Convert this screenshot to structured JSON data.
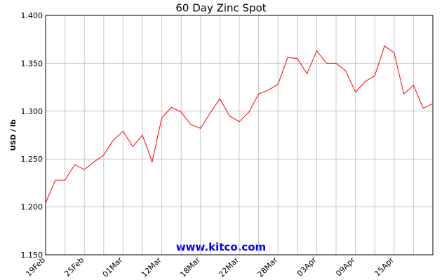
{
  "chart_data": {
    "type": "line",
    "title": "60 Day Zinc Spot",
    "y_label": "USD / lb",
    "annotation": "www.kitco.com",
    "categories": [
      "19Feb",
      null,
      null,
      null,
      "25Feb",
      null,
      null,
      null,
      "01Mar",
      null,
      null,
      null,
      "12Mar",
      null,
      null,
      null,
      "18Mar",
      null,
      null,
      null,
      "22Mar",
      null,
      null,
      null,
      "28Mar",
      null,
      null,
      null,
      "03Apr",
      null,
      null,
      null,
      "09Apr",
      null,
      null,
      null,
      "15Apr",
      null,
      null,
      null,
      null
    ],
    "values": [
      1.204,
      1.228,
      1.228,
      1.244,
      1.239,
      1.247,
      1.254,
      1.27,
      1.279,
      1.263,
      1.275,
      1.247,
      1.293,
      1.304,
      1.299,
      1.286,
      1.282,
      1.298,
      1.313,
      1.295,
      1.289,
      1.299,
      1.318,
      1.322,
      1.328,
      1.356,
      1.355,
      1.339,
      1.363,
      1.35,
      1.35,
      1.342,
      1.32,
      1.331,
      1.337,
      1.368,
      1.361,
      1.318,
      1.327,
      1.303,
      1.308
    ],
    "color": "#ff0000",
    "ylim": [
      1.15,
      1.4
    ],
    "yticks": [
      {
        "value": 1.15,
        "label": "1.150"
      },
      {
        "value": 1.2,
        "label": "1.200"
      },
      {
        "value": 1.25,
        "label": "1.250"
      },
      {
        "value": 1.3,
        "label": "1.300"
      },
      {
        "value": 1.35,
        "label": "1.350"
      },
      {
        "value": 1.4,
        "label": "1.400"
      }
    ],
    "grid": true
  }
}
